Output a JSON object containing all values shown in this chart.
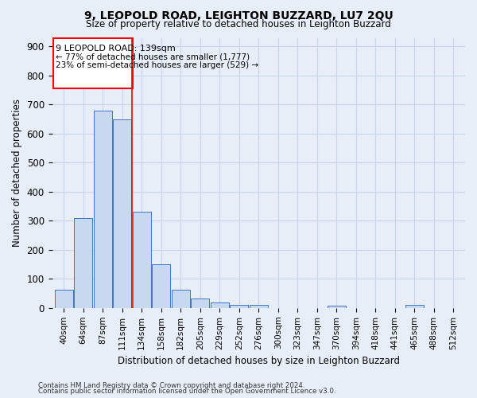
{
  "title": "9, LEOPOLD ROAD, LEIGHTON BUZZARD, LU7 2QU",
  "subtitle": "Size of property relative to detached houses in Leighton Buzzard",
  "xlabel": "Distribution of detached houses by size in Leighton Buzzard",
  "ylabel": "Number of detached properties",
  "bar_values": [
    62,
    310,
    680,
    650,
    330,
    150,
    62,
    33,
    20,
    11,
    10,
    0,
    0,
    0,
    8,
    0,
    0,
    0,
    10,
    0,
    0
  ],
  "bar_labels": [
    "40sqm",
    "64sqm",
    "87sqm",
    "111sqm",
    "134sqm",
    "158sqm",
    "182sqm",
    "205sqm",
    "229sqm",
    "252sqm",
    "276sqm",
    "300sqm",
    "323sqm",
    "347sqm",
    "370sqm",
    "394sqm",
    "418sqm",
    "441sqm",
    "465sqm",
    "488sqm",
    "512sqm"
  ],
  "bar_color": "#c6d9f1",
  "bar_edge_color": "#4472c4",
  "vline_x": 3.5,
  "annotation_text_line1": "9 LEOPOLD ROAD: 139sqm",
  "annotation_text_line2": "← 77% of detached houses are smaller (1,777)",
  "annotation_text_line3": "23% of semi-detached houses are larger (529) →",
  "ylim": [
    0,
    930
  ],
  "yticks": [
    0,
    100,
    200,
    300,
    400,
    500,
    600,
    700,
    800,
    900
  ],
  "grid_color": "#c8d4e8",
  "footer_line1": "Contains HM Land Registry data © Crown copyright and database right 2024.",
  "footer_line2": "Contains public sector information licensed under the Open Government Licence v3.0.",
  "bg_color": "#e8eef8"
}
